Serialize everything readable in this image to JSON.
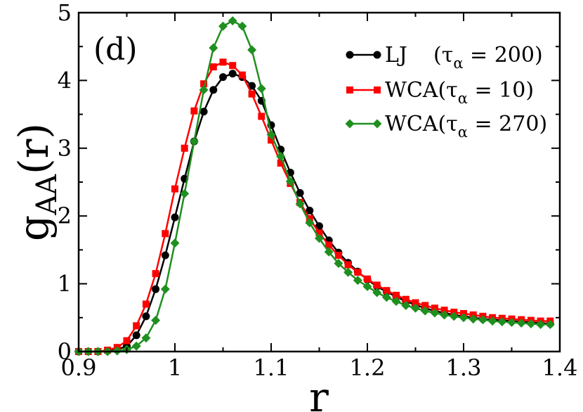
{
  "chart_data": {
    "type": "line",
    "panel_label": "(d)",
    "xlabel": "r",
    "ylabel": {
      "main": "g",
      "sub": "AA",
      "rest": "(r)"
    },
    "xlim": [
      0.9,
      1.4
    ],
    "ylim": [
      0,
      5
    ],
    "xticks": [
      0.9,
      1.0,
      1.1,
      1.2,
      1.3,
      1.4
    ],
    "xtick_labels": [
      "0.9",
      "1",
      "1.1",
      "1.2",
      "1.3",
      "1.4"
    ],
    "yticks": [
      0,
      1,
      2,
      3,
      4,
      5
    ],
    "ytick_labels": [
      "0",
      "1",
      "2",
      "3",
      "4",
      "5"
    ],
    "legend_position": "top-right",
    "series": [
      {
        "name": "LJ (τα = 200)",
        "legend": {
          "name": "LJ",
          "paren_open": "(τ",
          "sub": "α",
          "paren_close": " = 200)"
        },
        "color": "#000000",
        "marker": "circle",
        "x": [
          0.9,
          0.91,
          0.92,
          0.93,
          0.94,
          0.95,
          0.96,
          0.97,
          0.98,
          0.99,
          1.0,
          1.01,
          1.02,
          1.03,
          1.04,
          1.05,
          1.06,
          1.07,
          1.08,
          1.09,
          1.1,
          1.11,
          1.12,
          1.13,
          1.14,
          1.15,
          1.16,
          1.17,
          1.18,
          1.19,
          1.2,
          1.21,
          1.22,
          1.23,
          1.24,
          1.25,
          1.26,
          1.27,
          1.28,
          1.29,
          1.3,
          1.31,
          1.32,
          1.33,
          1.34,
          1.35,
          1.36,
          1.37,
          1.38,
          1.39
        ],
        "y": [
          0,
          0,
          0,
          0.01,
          0.03,
          0.08,
          0.24,
          0.52,
          0.92,
          1.42,
          1.98,
          2.55,
          3.1,
          3.54,
          3.86,
          4.05,
          4.1,
          4.05,
          3.92,
          3.7,
          3.34,
          2.98,
          2.64,
          2.34,
          2.08,
          1.85,
          1.64,
          1.46,
          1.31,
          1.18,
          1.06,
          0.96,
          0.88,
          0.81,
          0.74,
          0.69,
          0.64,
          0.6,
          0.57,
          0.54,
          0.52,
          0.5,
          0.48,
          0.47,
          0.46,
          0.45,
          0.44,
          0.43,
          0.42,
          0.41
        ]
      },
      {
        "name": "WCA(τα = 10)",
        "legend": {
          "name": "WCA",
          "paren_open": "(τ",
          "sub": "α",
          "paren_close": " = 10)"
        },
        "color": "#ff0000",
        "marker": "square",
        "x": [
          0.9,
          0.91,
          0.92,
          0.93,
          0.94,
          0.95,
          0.96,
          0.97,
          0.98,
          0.99,
          1.0,
          1.01,
          1.02,
          1.03,
          1.04,
          1.05,
          1.06,
          1.07,
          1.08,
          1.09,
          1.1,
          1.11,
          1.12,
          1.13,
          1.14,
          1.15,
          1.16,
          1.17,
          1.18,
          1.19,
          1.2,
          1.21,
          1.22,
          1.23,
          1.24,
          1.25,
          1.26,
          1.27,
          1.28,
          1.29,
          1.3,
          1.31,
          1.32,
          1.33,
          1.34,
          1.35,
          1.36,
          1.37,
          1.38,
          1.39
        ],
        "y": [
          0,
          0,
          0,
          0.02,
          0.06,
          0.16,
          0.38,
          0.7,
          1.15,
          1.74,
          2.4,
          3.0,
          3.55,
          3.95,
          4.2,
          4.27,
          4.22,
          4.08,
          3.8,
          3.47,
          3.12,
          2.78,
          2.48,
          2.2,
          1.96,
          1.75,
          1.57,
          1.42,
          1.28,
          1.17,
          1.07,
          0.98,
          0.9,
          0.83,
          0.77,
          0.72,
          0.68,
          0.64,
          0.61,
          0.58,
          0.56,
          0.54,
          0.52,
          0.5,
          0.49,
          0.48,
          0.47,
          0.46,
          0.45,
          0.45
        ]
      },
      {
        "name": "WCA(τα = 270)",
        "legend": {
          "name": "WCA",
          "paren_open": "(τ",
          "sub": "α",
          "paren_close": " = 270)"
        },
        "color": "#1f8f1f",
        "marker": "diamond",
        "x": [
          0.9,
          0.91,
          0.92,
          0.93,
          0.94,
          0.95,
          0.96,
          0.97,
          0.98,
          0.99,
          1.0,
          1.01,
          1.02,
          1.03,
          1.04,
          1.05,
          1.06,
          1.07,
          1.08,
          1.09,
          1.1,
          1.11,
          1.12,
          1.13,
          1.14,
          1.15,
          1.16,
          1.17,
          1.18,
          1.19,
          1.2,
          1.21,
          1.22,
          1.23,
          1.24,
          1.25,
          1.26,
          1.27,
          1.28,
          1.29,
          1.3,
          1.31,
          1.32,
          1.33,
          1.34,
          1.35,
          1.36,
          1.37,
          1.38,
          1.39
        ],
        "y": [
          0,
          0,
          0,
          0,
          0.01,
          0.03,
          0.08,
          0.2,
          0.46,
          0.92,
          1.6,
          2.33,
          3.1,
          3.86,
          4.48,
          4.8,
          4.88,
          4.8,
          4.45,
          3.88,
          3.2,
          2.88,
          2.51,
          2.18,
          1.9,
          1.67,
          1.47,
          1.3,
          1.17,
          1.05,
          0.96,
          0.87,
          0.8,
          0.74,
          0.68,
          0.64,
          0.6,
          0.57,
          0.54,
          0.52,
          0.5,
          0.48,
          0.47,
          0.45,
          0.44,
          0.43,
          0.42,
          0.41,
          0.4,
          0.4
        ]
      }
    ]
  }
}
